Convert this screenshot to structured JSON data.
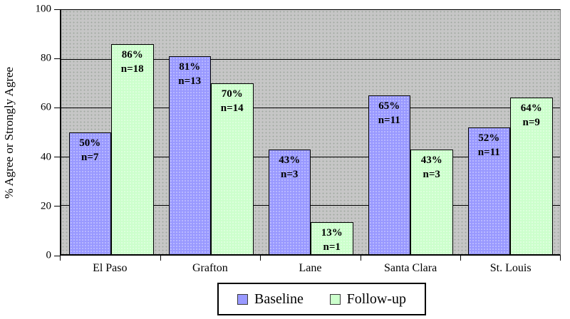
{
  "chart_data": {
    "type": "bar",
    "title": "",
    "ylabel": "% Agree or Strongly Agree",
    "xlabel": "",
    "ylim": [
      0,
      100
    ],
    "yticks": [
      0,
      20,
      40,
      60,
      80,
      100
    ],
    "grid": true,
    "legend_position": "bottom",
    "plot_bg_color": "#C6C6C6",
    "categories": [
      "El Paso",
      "Grafton",
      "Lane",
      "Santa Clara",
      "St. Louis"
    ],
    "series": [
      {
        "name": "Baseline",
        "color": "#9999FF",
        "values": [
          50,
          81,
          43,
          65,
          52
        ],
        "n": [
          7,
          13,
          3,
          11,
          11
        ]
      },
      {
        "name": "Follow-up",
        "color": "#CCFFCC",
        "values": [
          86,
          70,
          13,
          43,
          64
        ],
        "n": [
          18,
          14,
          1,
          3,
          9
        ]
      }
    ],
    "bar_label_format": [
      "{value}%",
      "n={n}"
    ]
  }
}
